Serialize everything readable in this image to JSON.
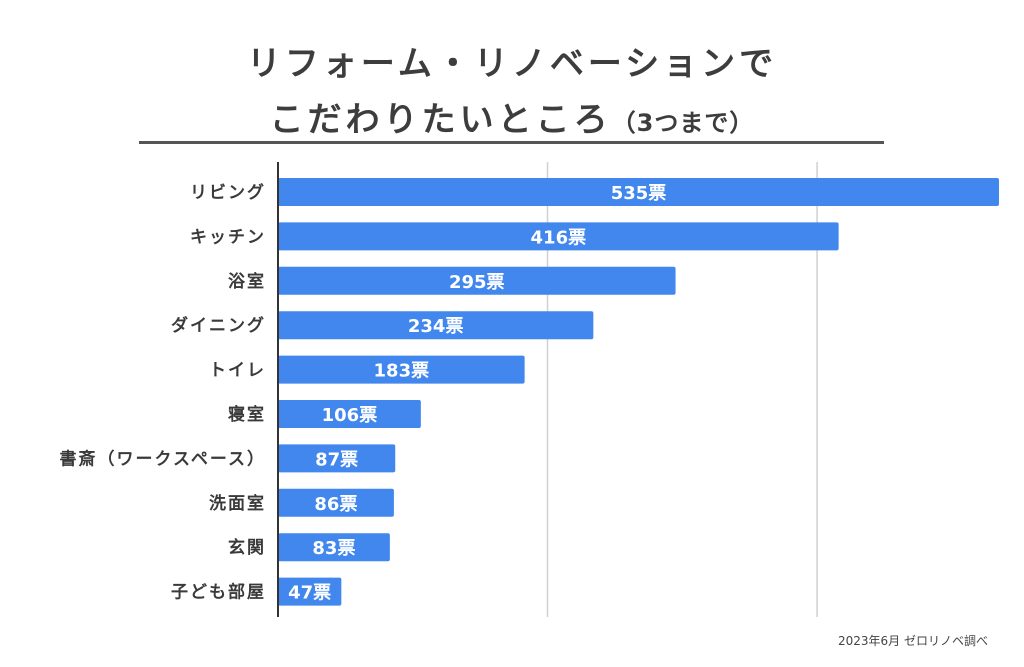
{
  "colors": {
    "bar": "#4187ee",
    "grid": "#d0d0d0",
    "axis": "#333333",
    "rule": "#555555"
  },
  "chart_data": {
    "type": "bar",
    "orientation": "horizontal",
    "title_line1": "リフォーム・リノベーションで",
    "title_line2": "こだわりたいところ",
    "title_note": "（3つまで）",
    "categories": [
      "リビング",
      "キッチン",
      "浴室",
      "ダイニング",
      "トイレ",
      "寝室",
      "書斎（ワークスペース）",
      "洗面室",
      "玄関",
      "子ども部屋"
    ],
    "values": [
      535,
      416,
      295,
      234,
      183,
      106,
      87,
      86,
      83,
      47
    ],
    "value_suffix": "票",
    "xlim": [
      0,
      535
    ],
    "gridlines": [
      200,
      400
    ],
    "source": "2023年6月 ゼロリノベ調べ"
  }
}
